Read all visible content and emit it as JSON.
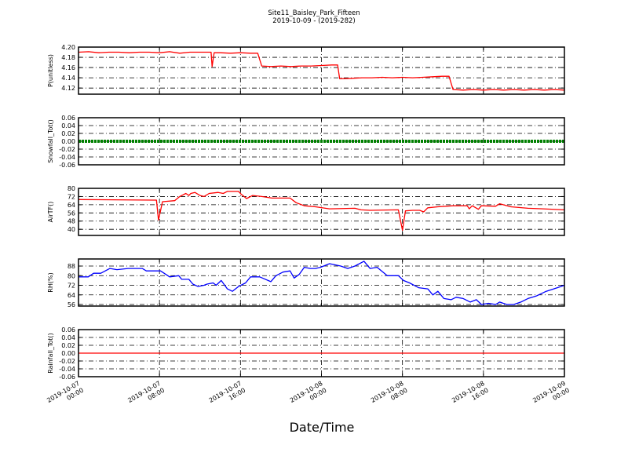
{
  "chart_data": {
    "type": "line",
    "title": "Site11_Baisley_Park_Fifteen",
    "subtitle": "2019-10-09 - (2019-282)",
    "xlabel": "Date/Time",
    "x_units": "hours since 2019-10-07 00:00",
    "xlim": [
      0,
      48
    ],
    "x_ticks": [
      0,
      8,
      16,
      24,
      32,
      40,
      48
    ],
    "x_tick_labels": [
      [
        "2019-10-07",
        "00:00"
      ],
      [
        "2019-10-07",
        "08:00"
      ],
      [
        "2019-10-07",
        "16:00"
      ],
      [
        "2019-10-08",
        "00:00"
      ],
      [
        "2019-10-08",
        "08:00"
      ],
      [
        "2019-10-08",
        "16:00"
      ],
      [
        "2019-10-09",
        "00:00"
      ]
    ],
    "grid": true,
    "panels": [
      {
        "ylabel": "P(unitless)",
        "color": "#ff0000",
        "style": "line",
        "ylim": [
          4.108,
          4.2
        ],
        "yticks": [
          4.12,
          4.14,
          4.16,
          4.18,
          4.2
        ],
        "ytick_labels": [
          "4.12",
          "4.14",
          "4.16",
          "4.18",
          "4.20"
        ],
        "x": [
          0,
          1,
          2,
          3,
          4,
          5,
          6,
          7,
          8,
          9,
          10,
          11,
          12,
          13.1,
          13.2,
          13.4,
          14,
          15,
          16,
          17,
          17.7,
          18.1,
          19,
          20,
          21,
          22,
          23,
          24,
          25,
          25.6,
          25.8,
          27,
          28,
          29,
          30,
          31,
          32,
          33,
          34,
          35,
          35.9,
          36.6,
          37.0,
          38,
          39,
          40,
          41,
          42,
          43,
          44,
          45,
          46,
          47,
          48
        ],
        "y": [
          4.19,
          4.191,
          4.189,
          4.19,
          4.19,
          4.189,
          4.19,
          4.19,
          4.189,
          4.191,
          4.188,
          4.19,
          4.19,
          4.19,
          4.162,
          4.189,
          4.189,
          4.188,
          4.189,
          4.188,
          4.188,
          4.163,
          4.162,
          4.163,
          4.162,
          4.163,
          4.163,
          4.164,
          4.165,
          4.165,
          4.138,
          4.139,
          4.14,
          4.14,
          4.141,
          4.14,
          4.141,
          4.14,
          4.141,
          4.142,
          4.143,
          4.143,
          4.117,
          4.116,
          4.117,
          4.116,
          4.117,
          4.116,
          4.117,
          4.116,
          4.117,
          4.116,
          4.117,
          4.116
        ]
      },
      {
        "ylabel": "Snowfall_Tot()",
        "color": "#008000",
        "style": "dots",
        "ylim": [
          -0.06,
          0.06
        ],
        "yticks": [
          -0.06,
          -0.04,
          -0.02,
          0,
          0.02,
          0.04,
          0.06
        ],
        "ytick_labels": [
          "-0.06",
          "-0.04",
          "-0.02",
          "0.00",
          "0.02",
          "0.04",
          "0.06"
        ],
        "x": [
          0,
          48
        ],
        "y": [
          0,
          0
        ]
      },
      {
        "ylabel": "AirTF()",
        "color": "#ff0000",
        "style": "line",
        "ylim": [
          34,
          80
        ],
        "yticks": [
          40,
          48,
          56,
          64,
          72,
          80
        ],
        "ytick_labels": [
          "40",
          "48",
          "56",
          "64",
          "72",
          "80"
        ],
        "x": [
          0,
          7.4,
          7.7,
          7.9,
          8.3,
          9.5,
          10.0,
          10.6,
          10.9,
          11.1,
          11.5,
          12.0,
          12.4,
          12.9,
          13.8,
          14.3,
          14.7,
          15.8,
          16.1,
          16.6,
          17.2,
          18.1,
          19.1,
          20.9,
          21.5,
          22.3,
          23.4,
          24.8,
          27.3,
          27.9,
          28.8,
          31.6,
          32.0,
          32.3,
          33.0,
          33.7,
          34.1,
          34.5,
          35.5,
          37.0,
          38.4,
          38.6,
          38.9,
          39.5,
          39.8,
          41.2,
          41.6,
          42.7,
          44.4,
          45.9,
          48
        ],
        "y": [
          69,
          68.5,
          68.5,
          49,
          67,
          68,
          72,
          75,
          73,
          75,
          76,
          73,
          72,
          75,
          76,
          75,
          77,
          77,
          74,
          70,
          73,
          72,
          70.5,
          70.5,
          66,
          63,
          62,
          60,
          60.5,
          59,
          58.5,
          59,
          39,
          58,
          58.5,
          58.5,
          57,
          61,
          62,
          63,
          63,
          60,
          63,
          59.5,
          63,
          62.5,
          65,
          62,
          60.5,
          60,
          59
        ]
      },
      {
        "ylabel": "RH(%)",
        "color": "#0000ff",
        "style": "line",
        "ylim": [
          54.7,
          93.9
        ],
        "yticks": [
          56,
          64,
          72,
          80,
          88
        ],
        "ytick_labels": [
          "56",
          "64",
          "72",
          "80",
          "88"
        ],
        "x": [
          0,
          0.96,
          1.5,
          2.2,
          3.1,
          3.8,
          4.9,
          6.3,
          6.7,
          7.7,
          8.1,
          9.0,
          9.9,
          10.2,
          10.9,
          11.3,
          11.8,
          12.4,
          12.7,
          13.3,
          13.6,
          14.1,
          14.7,
          15.2,
          15.8,
          16.5,
          17.0,
          17.9,
          19.0,
          19.5,
          20.2,
          20.9,
          21.3,
          21.8,
          22.3,
          22.9,
          23.4,
          23.9,
          24.8,
          25.9,
          26.6,
          27.3,
          28.2,
          28.8,
          29.5,
          30.5,
          31.6,
          32.1,
          32.7,
          33.6,
          34.5,
          35.0,
          35.5,
          36.1,
          36.8,
          37.3,
          38.0,
          38.7,
          39.3,
          39.8,
          40.5,
          41.2,
          41.6,
          42.3,
          43.0,
          43.7,
          44.4,
          45.2,
          46.2,
          47.3,
          48
        ],
        "y": [
          79,
          79,
          82,
          82,
          86,
          85,
          86,
          86,
          84,
          84,
          84,
          79,
          80,
          77,
          77,
          73,
          71,
          72,
          73,
          74,
          72,
          76,
          69,
          67,
          71,
          74,
          79,
          79,
          75,
          80,
          83,
          84,
          78,
          81,
          87,
          86,
          86,
          87,
          90,
          88,
          86,
          88,
          92,
          86,
          87,
          80,
          80,
          76,
          74,
          70,
          69,
          64,
          67,
          61,
          60,
          62,
          61,
          58,
          60,
          56,
          57,
          56,
          58,
          56,
          56,
          58,
          61,
          63,
          67,
          70,
          72
        ]
      },
      {
        "ylabel": "Rainfall_Tot()",
        "color": "#ff0000",
        "style": "line",
        "ylim": [
          -0.06,
          0.06
        ],
        "yticks": [
          -0.06,
          -0.04,
          -0.02,
          0,
          0.02,
          0.04,
          0.06
        ],
        "ytick_labels": [
          "-0.06",
          "-0.04",
          "-0.02",
          "0.00",
          "0.02",
          "0.04",
          "0.06"
        ],
        "x": [
          0,
          48
        ],
        "y": [
          0,
          0
        ]
      }
    ]
  }
}
